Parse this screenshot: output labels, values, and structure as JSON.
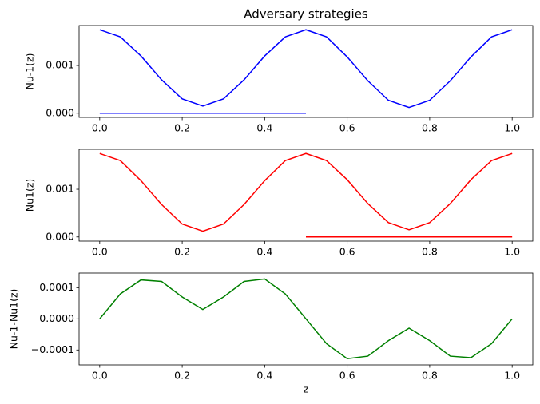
{
  "chart_data": [
    {
      "type": "line",
      "title": "Adversary strategies",
      "ylabel": "Nu-1(z)",
      "series": [
        {
          "color": "#0000ff",
          "x": [
            0,
            0.05,
            0.1,
            0.15,
            0.2,
            0.25,
            0.3,
            0.35,
            0.4,
            0.45,
            0.5,
            0.55,
            0.6,
            0.65,
            0.7,
            0.75,
            0.8,
            0.85,
            0.9,
            0.95,
            1
          ],
          "values": [
            0.00175,
            0.0016,
            0.0012,
            0.0007,
            0.0003,
            0.00015,
            0.0003,
            0.0007,
            0.0012,
            0.0016,
            0.00175,
            0.0016,
            0.00118,
            0.00068,
            0.00027,
            0.00012,
            0.00027,
            0.00068,
            0.00118,
            0.0016,
            0.00175
          ]
        },
        {
          "color": "#0000ff",
          "x": [
            0,
            0.5
          ],
          "values": [
            0,
            0
          ]
        }
      ],
      "xlim": [
        -0.05,
        1.05
      ],
      "xticks": [
        {
          "value": 0,
          "label": "0.0"
        },
        0.2,
        0.4,
        0.6,
        0.8,
        {
          "value": 1,
          "label": "1.0"
        }
      ],
      "ylim": [
        -8.75e-05,
        0.0018375
      ],
      "yticks": [
        {
          "value": 0,
          "label": "0.000"
        },
        {
          "value": 0.001,
          "label": "0.001"
        }
      ]
    },
    {
      "type": "line",
      "ylabel": "Nu1(z)",
      "series": [
        {
          "color": "#ff0000",
          "x": [
            0,
            0.05,
            0.1,
            0.15,
            0.2,
            0.25,
            0.3,
            0.35,
            0.4,
            0.45,
            0.5,
            0.55,
            0.6,
            0.65,
            0.7,
            0.75,
            0.8,
            0.85,
            0.9,
            0.95,
            1
          ],
          "values": [
            0.00175,
            0.0016,
            0.00118,
            0.00068,
            0.00027,
            0.00012,
            0.00027,
            0.00068,
            0.00118,
            0.0016,
            0.00175,
            0.0016,
            0.0012,
            0.0007,
            0.0003,
            0.00015,
            0.0003,
            0.0007,
            0.0012,
            0.0016,
            0.00175
          ]
        },
        {
          "color": "#ff0000",
          "x": [
            0.5,
            1
          ],
          "values": [
            0,
            0
          ]
        }
      ],
      "xlim": [
        -0.05,
        1.05
      ],
      "xticks": [
        {
          "value": 0,
          "label": "0.0"
        },
        0.2,
        0.4,
        0.6,
        0.8,
        {
          "value": 1,
          "label": "1.0"
        }
      ],
      "ylim": [
        -8.75e-05,
        0.0018375
      ],
      "yticks": [
        {
          "value": 0,
          "label": "0.000"
        },
        {
          "value": 0.001,
          "label": "0.001"
        }
      ]
    },
    {
      "type": "line",
      "ylabel": "Nu-1-Nu1(z)",
      "xlabel": "z",
      "series": [
        {
          "color": "#008000",
          "x": [
            0,
            0.05,
            0.1,
            0.15,
            0.2,
            0.25,
            0.3,
            0.35,
            0.4,
            0.45,
            0.5,
            0.55,
            0.6,
            0.65,
            0.7,
            0.75,
            0.8,
            0.85,
            0.9,
            0.95,
            1
          ],
          "values": [
            0,
            8e-05,
            0.000125,
            0.00012,
            7e-05,
            3e-05,
            7e-05,
            0.00012,
            0.000128,
            8e-05,
            0,
            -8e-05,
            -0.000128,
            -0.00012,
            -7e-05,
            -3e-05,
            -7e-05,
            -0.00012,
            -0.000125,
            -8e-05,
            0
          ]
        }
      ],
      "xlim": [
        -0.05,
        1.05
      ],
      "xticks": [
        {
          "value": 0,
          "label": "0.0"
        },
        0.2,
        0.4,
        0.6,
        0.8,
        {
          "value": 1,
          "label": "1.0"
        }
      ],
      "ylim": [
        -0.000148,
        0.000147
      ],
      "yticks": [
        {
          "value": -0.0001,
          "label": "−0.0001"
        },
        {
          "value": 0,
          "label": "0.0000"
        },
        {
          "value": 0.0001,
          "label": "0.0001"
        }
      ]
    }
  ]
}
